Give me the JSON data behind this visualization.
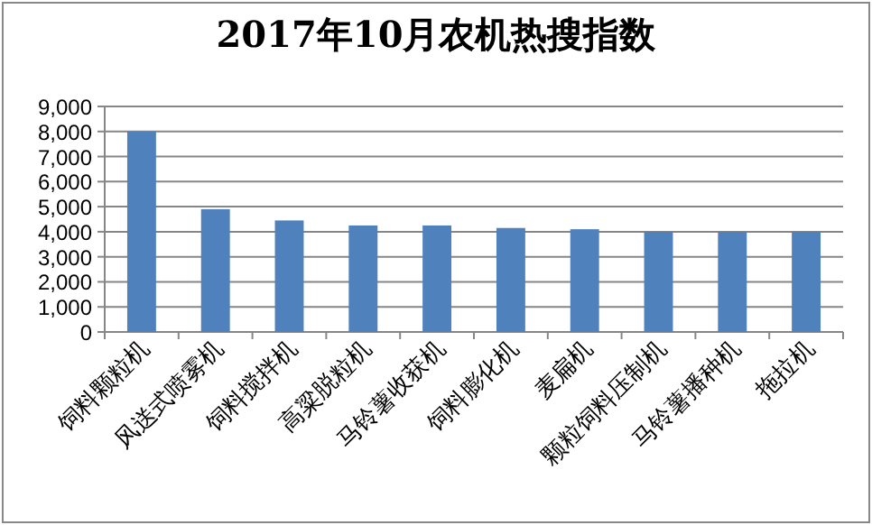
{
  "chart_data": {
    "type": "bar",
    "title": "2017年10月农机热搜指数",
    "categories": [
      "饲料颗粒机",
      "风送式喷雾机",
      "饲料搅拌机",
      "高粱脱粒机",
      "马铃薯收获机",
      "饲料膨化机",
      "麦扁机",
      "颗粒饲料压制机",
      "马铃薯播种机",
      "拖拉机"
    ],
    "values": [
      8000,
      4900,
      4450,
      4250,
      4250,
      4150,
      4100,
      4000,
      4000,
      4000
    ],
    "color": "#4f81bd",
    "ylim": [
      0,
      9000
    ],
    "yticks": [
      {
        "value": 0,
        "label": "0"
      },
      {
        "value": 1000,
        "label": "1,000"
      },
      {
        "value": 2000,
        "label": "2,000"
      },
      {
        "value": 3000,
        "label": "3,000"
      },
      {
        "value": 4000,
        "label": "4,000"
      },
      {
        "value": 5000,
        "label": "5,000"
      },
      {
        "value": 6000,
        "label": "6,000"
      },
      {
        "value": 7000,
        "label": "7,000"
      },
      {
        "value": 8000,
        "label": "8,000"
      },
      {
        "value": 9000,
        "label": "9,000"
      }
    ],
    "grid": "y"
  }
}
